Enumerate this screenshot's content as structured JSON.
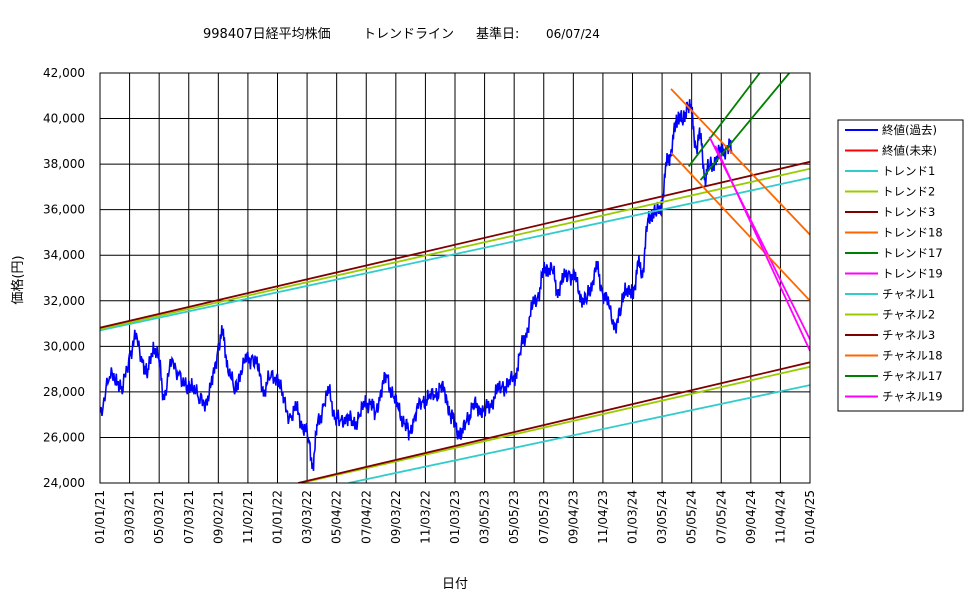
{
  "chart_data": {
    "type": "line",
    "title_prefix": "998407日経平均株価",
    "title_main": "トレンドライン",
    "title_basis_label": "基準日:",
    "title_basis_date": "06/07/24",
    "xlabel": "日付",
    "ylabel": "価格(円)",
    "ylim": [
      24000,
      42000
    ],
    "y_ticks": [
      24000,
      26000,
      28000,
      30000,
      32000,
      34000,
      36000,
      38000,
      40000,
      42000
    ],
    "y_tick_labels": [
      "24,000",
      "26,000",
      "28,000",
      "30,000",
      "32,000",
      "34,000",
      "36,000",
      "38,000",
      "40,000",
      "42,000"
    ],
    "x_tick_labels": [
      "01/01/21",
      "03/03/21",
      "05/03/21",
      "07/03/21",
      "09/02/21",
      "11/02/21",
      "01/01/22",
      "03/03/22",
      "05/04/22",
      "07/04/22",
      "09/03/22",
      "11/03/22",
      "01/03/23",
      "03/05/23",
      "05/05/23",
      "07/05/23",
      "09/04/23",
      "11/04/23",
      "01/03/24",
      "03/05/24",
      "05/05/24",
      "07/05/24",
      "09/04/24",
      "11/04/24",
      "01/04/25"
    ],
    "grid": true,
    "legend_position": "right",
    "series": [
      {
        "name": "終値(過去)",
        "color": "#0000ff",
        "kind": "price",
        "points": [
          [
            0,
            27100
          ],
          [
            0.3,
            28500
          ],
          [
            0.55,
            28800
          ],
          [
            0.75,
            27900
          ],
          [
            1,
            29700
          ],
          [
            1.2,
            30300
          ],
          [
            1.45,
            29400
          ],
          [
            1.6,
            28600
          ],
          [
            1.8,
            30200
          ],
          [
            2,
            29300
          ],
          [
            2.15,
            27800
          ],
          [
            2.4,
            29100
          ],
          [
            2.7,
            28900
          ],
          [
            2.95,
            27900
          ],
          [
            3.1,
            28600
          ],
          [
            3.35,
            27500
          ],
          [
            3.6,
            27700
          ],
          [
            3.8,
            28300
          ],
          [
            4,
            30100
          ],
          [
            4.15,
            30500
          ],
          [
            4.3,
            29400
          ],
          [
            4.55,
            27900
          ],
          [
            4.7,
            28800
          ],
          [
            4.95,
            29300
          ],
          [
            5.15,
            29600
          ],
          [
            5.35,
            28900
          ],
          [
            5.55,
            28100
          ],
          [
            5.75,
            28600
          ],
          [
            6,
            28800
          ],
          [
            6.2,
            27500
          ],
          [
            6.45,
            26900
          ],
          [
            6.65,
            27200
          ],
          [
            6.85,
            26600
          ],
          [
            7.05,
            25900
          ],
          [
            7.2,
            24800
          ],
          [
            7.35,
            26500
          ],
          [
            7.55,
            27400
          ],
          [
            7.75,
            28000
          ],
          [
            7.95,
            26900
          ],
          [
            8.1,
            26700
          ],
          [
            8.35,
            27000
          ],
          [
            8.55,
            26500
          ],
          [
            8.75,
            26900
          ],
          [
            8.95,
            27400
          ],
          [
            9.15,
            27600
          ],
          [
            9.3,
            27000
          ],
          [
            9.5,
            28100
          ],
          [
            9.7,
            28700
          ],
          [
            9.9,
            27800
          ],
          [
            10.1,
            27200
          ],
          [
            10.3,
            26600
          ],
          [
            10.45,
            26200
          ],
          [
            10.65,
            27000
          ],
          [
            10.9,
            27600
          ],
          [
            11.1,
            27700
          ],
          [
            11.35,
            27800
          ],
          [
            11.5,
            28200
          ],
          [
            11.7,
            27900
          ],
          [
            11.85,
            26900
          ],
          [
            12,
            26700
          ],
          [
            12.2,
            25900
          ],
          [
            12.4,
            26800
          ],
          [
            12.6,
            27300
          ],
          [
            12.8,
            27400
          ],
          [
            13,
            27100
          ],
          [
            13.2,
            27500
          ],
          [
            13.4,
            27900
          ],
          [
            13.6,
            28300
          ],
          [
            13.8,
            28200
          ],
          [
            14.05,
            28800
          ],
          [
            14.2,
            29700
          ],
          [
            14.4,
            30600
          ],
          [
            14.6,
            31600
          ],
          [
            14.8,
            32200
          ],
          [
            14.95,
            33000
          ],
          [
            15.1,
            33600
          ],
          [
            15.3,
            33300
          ],
          [
            15.45,
            32500
          ],
          [
            15.65,
            32800
          ],
          [
            15.85,
            33300
          ],
          [
            16.05,
            32900
          ],
          [
            16.25,
            32300
          ],
          [
            16.45,
            31900
          ],
          [
            16.6,
            32800
          ],
          [
            16.8,
            33400
          ],
          [
            16.95,
            32600
          ],
          [
            17.15,
            31800
          ],
          [
            17.4,
            31000
          ],
          [
            17.6,
            31400
          ],
          [
            17.75,
            32800
          ],
          [
            17.95,
            32100
          ],
          [
            18.05,
            32600
          ],
          [
            18.2,
            33500
          ],
          [
            18.35,
            33300
          ],
          [
            18.5,
            35300
          ],
          [
            18.65,
            36000
          ],
          [
            18.8,
            35700
          ],
          [
            19,
            36400
          ],
          [
            19.15,
            37900
          ],
          [
            19.3,
            38600
          ],
          [
            19.45,
            39600
          ],
          [
            19.55,
            40300
          ],
          [
            19.7,
            39700
          ],
          [
            19.85,
            40700
          ],
          [
            20,
            40200
          ],
          [
            20.15,
            38700
          ],
          [
            20.3,
            39300
          ],
          [
            20.45,
            37400
          ],
          [
            20.6,
            37900
          ],
          [
            20.8,
            38200
          ],
          [
            21,
            38500
          ],
          [
            21.2,
            38800
          ],
          [
            21.35,
            38600
          ]
        ]
      },
      {
        "name": "終値(未来)",
        "color": "#ff0000",
        "kind": "line",
        "points": []
      },
      {
        "name": "トレンド1",
        "color": "#33cccc",
        "kind": "line",
        "points": [
          [
            0,
            30700
          ],
          [
            24,
            37400
          ]
        ]
      },
      {
        "name": "トレンド2",
        "color": "#99cc00",
        "kind": "line",
        "points": [
          [
            0,
            30760
          ],
          [
            24,
            37800
          ]
        ]
      },
      {
        "name": "トレンド3",
        "color": "#800000",
        "kind": "line",
        "points": [
          [
            0,
            30820
          ],
          [
            24,
            38100
          ]
        ]
      },
      {
        "name": "トレンド18",
        "color": "#ff6600",
        "kind": "line",
        "points": [
          [
            19.3,
            41300
          ],
          [
            24,
            34900
          ]
        ]
      },
      {
        "name": "トレンド17",
        "color": "#008000",
        "kind": "line",
        "points": [
          [
            19.9,
            37900
          ],
          [
            22.3,
            42000
          ]
        ]
      },
      {
        "name": "トレンド19",
        "color": "#ff00ff",
        "kind": "line",
        "points": [
          [
            20.6,
            39200
          ],
          [
            24,
            30300
          ]
        ]
      },
      {
        "name": "チャネル1",
        "color": "#33cccc",
        "kind": "line",
        "points": [
          [
            8.4,
            24000
          ],
          [
            24,
            28300
          ]
        ]
      },
      {
        "name": "チャネル2",
        "color": "#99cc00",
        "kind": "line",
        "points": [
          [
            6.8,
            24000
          ],
          [
            24,
            29100
          ]
        ]
      },
      {
        "name": "チャネル3",
        "color": "#800000",
        "kind": "line",
        "points": [
          [
            6.7,
            24000
          ],
          [
            24,
            29300
          ]
        ]
      },
      {
        "name": "チャネル18",
        "color": "#ff6600",
        "kind": "line",
        "points": [
          [
            19.3,
            38500
          ],
          [
            24,
            32000
          ]
        ]
      },
      {
        "name": "チャネル17",
        "color": "#008000",
        "kind": "line",
        "points": [
          [
            20.3,
            37300
          ],
          [
            23.3,
            42000
          ]
        ]
      },
      {
        "name": "チャネル19",
        "color": "#ff00ff",
        "kind": "line",
        "points": [
          [
            20.8,
            38800
          ],
          [
            24,
            29800
          ]
        ]
      }
    ]
  }
}
